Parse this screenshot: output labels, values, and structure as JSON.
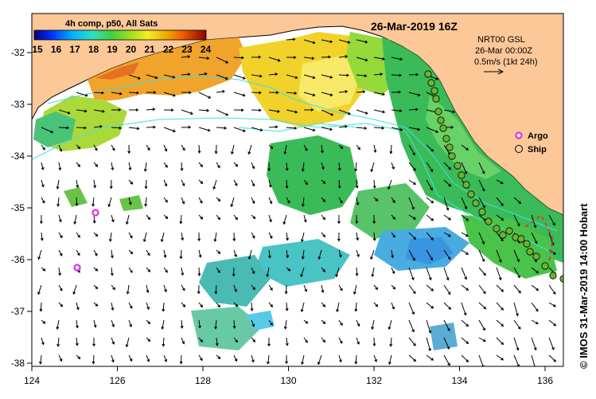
{
  "map": {
    "title_date": "26-Mar-2019 16Z",
    "colorbar": {
      "title": "4h comp, p50, All Sats",
      "ticks": [
        "15",
        "16",
        "17",
        "18",
        "19",
        "20",
        "21",
        "22",
        "23",
        "24"
      ]
    },
    "current_info": {
      "line1": "NRT00 GSL",
      "line2": "26-Mar 00:00Z",
      "line3": "0.5m/s (1kt 24h)"
    },
    "legend": {
      "argo": "Argo",
      "ship": "Ship"
    },
    "x_ticks": [
      "124",
      "126",
      "128",
      "130",
      "132",
      "134",
      "136"
    ],
    "y_ticks": [
      "-32",
      "-33",
      "-34",
      "-35",
      "-36",
      "-37",
      "-38"
    ],
    "credit": "© IMOS 31-Mar-2019 14:00 Hobart",
    "colors": {
      "land": "#fcc898",
      "ocean": "#ffffff",
      "argo": "#e040e0",
      "ship_fill": "#6ab432",
      "contour": "#40e0e0"
    }
  }
}
